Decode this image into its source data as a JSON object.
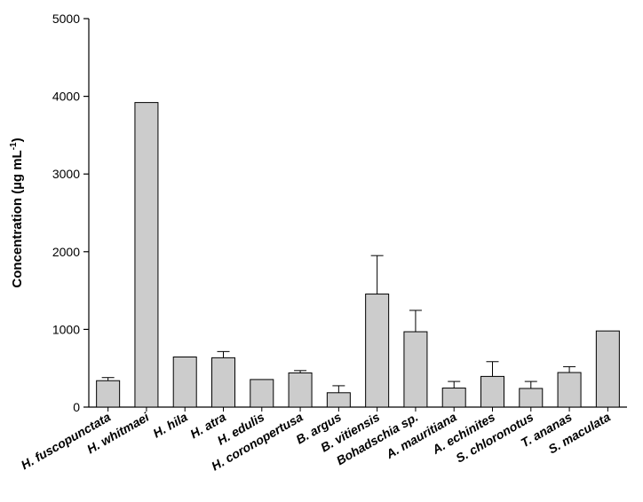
{
  "chart_data": {
    "type": "bar",
    "ylabel": "Concentration (µg mL",
    "ylabel_sup": "-1",
    "ylabel_close": ")",
    "ylim": [
      0,
      5000
    ],
    "yticks": [
      0,
      1000,
      2000,
      3000,
      4000,
      5000
    ],
    "grid": false,
    "categories": [
      "H. fuscopunctata",
      "H. whitmaei",
      "H. hila",
      "H. atra",
      "H. edulis",
      "H. coronopertusa",
      "B. argus",
      "B. vitiensis",
      "Bohadschia sp.",
      "A. mauritiana",
      "A. echinites",
      "S. chloronotus",
      "T. ananas",
      "S. maculata"
    ],
    "values": [
      340,
      3920,
      645,
      635,
      355,
      440,
      185,
      1455,
      970,
      245,
      395,
      240,
      445,
      980
    ],
    "error_plus": [
      40,
      0,
      0,
      80,
      0,
      30,
      90,
      495,
      275,
      85,
      190,
      90,
      75,
      0
    ],
    "bar_color": "#cccccc",
    "bar_edge_color": "#000000"
  }
}
